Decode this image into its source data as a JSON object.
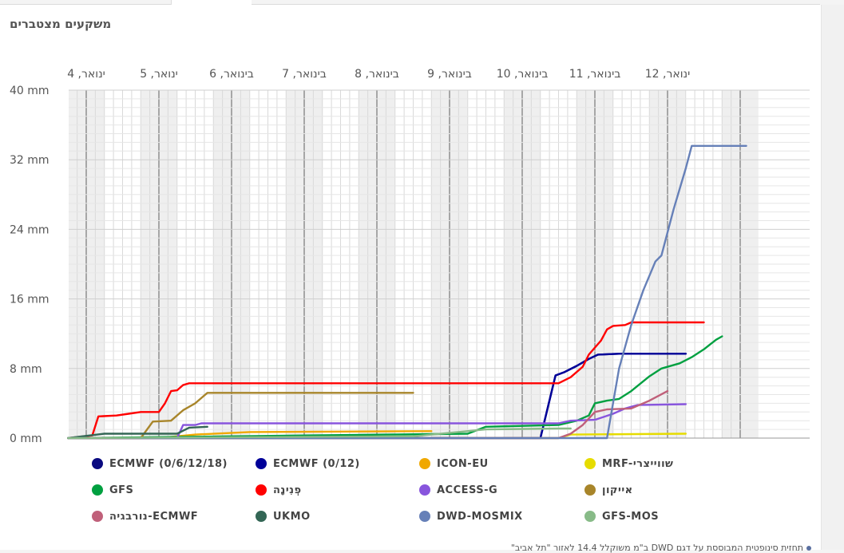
{
  "panel": {
    "title": "משקעים מצטברים"
  },
  "footnote": {
    "text": "תחזית סינופטית המבוססת על דגם DWD ב\"מ משוקלל 14.4 לאזור \"תל אביב\""
  },
  "colors": {
    "grid": "#d9d9d9",
    "band": "#efefef",
    "midnight": "#777777",
    "axis": "#999999"
  },
  "chart_data": {
    "type": "line",
    "title": "משקעים מצטברים",
    "xlabel": "",
    "ylabel": "",
    "x_unit": "hours since first midnight label (4 ינואר)",
    "xlim": [
      -6,
      205
    ],
    "ylim": [
      0,
      40
    ],
    "y_ticks": [
      {
        "value": 0,
        "label": "0 mm"
      },
      {
        "value": 8,
        "label": "8 mm"
      },
      {
        "value": 16,
        "label": "16 mm"
      },
      {
        "value": 24,
        "label": "24 mm"
      },
      {
        "value": 32,
        "label": "32 mm"
      },
      {
        "value": 40,
        "label": "40 mm"
      }
    ],
    "x_day_labels": [
      {
        "x": 12,
        "label": "4 ,ינואר"
      },
      {
        "x": 36,
        "label": "5 ,ינואר"
      },
      {
        "x": 60,
        "label": "6 ,בינואר"
      },
      {
        "x": 84,
        "label": "7 ,בינואר"
      },
      {
        "x": 108,
        "label": "8 ,בינואר"
      },
      {
        "x": 132,
        "label": "9 ,בינואר"
      },
      {
        "x": 156,
        "label": "10 ,בינואר"
      },
      {
        "x": 180,
        "label": "11 ,בינואר"
      },
      {
        "x": 204,
        "label": "12 ,ינואר"
      }
    ],
    "grid": true,
    "legend_position": "bottom",
    "series": [
      {
        "name": "ECMWF (0/6/12/18)",
        "color": "#0a0a80",
        "points": [
          [
            -6,
            0
          ],
          [
            150,
            0
          ],
          [
            155,
            7.2
          ],
          [
            158,
            7.6
          ],
          [
            162,
            8.3
          ],
          [
            166,
            9.1
          ],
          [
            169,
            9.6
          ],
          [
            176,
            9.7
          ],
          [
            198,
            9.7
          ]
        ]
      },
      {
        "name": "ECMWF (0/12)",
        "color": "#000099",
        "points": [
          [
            -6,
            0
          ],
          [
            150,
            0
          ],
          [
            155,
            7.2
          ],
          [
            158,
            7.6
          ],
          [
            162,
            8.3
          ],
          [
            166,
            9.1
          ],
          [
            169,
            9.6
          ],
          [
            176,
            9.7
          ],
          [
            198,
            9.7
          ]
        ]
      },
      {
        "name": "ICON-EU",
        "color": "#f0a800",
        "points": [
          [
            -6,
            0
          ],
          [
            24,
            0
          ],
          [
            36,
            0.4
          ],
          [
            54,
            0.7
          ],
          [
            114,
            0.8
          ]
        ]
      },
      {
        "name": "MRF-שווייצרי",
        "color": "#e6dc00",
        "points": [
          [
            -6,
            0
          ],
          [
            156,
            0
          ],
          [
            160,
            0.4
          ],
          [
            198,
            0.5
          ]
        ]
      },
      {
        "name": "GFS",
        "color": "#00a040",
        "points": [
          [
            -6,
            0
          ],
          [
            126,
            0.5
          ],
          [
            132,
            1.3
          ],
          [
            156,
            1.5
          ],
          [
            162,
            2.0
          ],
          [
            166,
            2.6
          ],
          [
            168,
            4.0
          ],
          [
            172,
            4.3
          ],
          [
            176,
            4.5
          ],
          [
            180,
            5.4
          ],
          [
            186,
            7.1
          ],
          [
            190,
            8.0
          ],
          [
            196,
            8.6
          ],
          [
            200,
            9.3
          ],
          [
            204,
            10.2
          ],
          [
            208,
            11.3
          ],
          [
            210,
            11.7
          ]
        ]
      },
      {
        "name": "פְנִינָה",
        "color": "#ff0000",
        "points": [
          [
            -6,
            0
          ],
          [
            2,
            0.3
          ],
          [
            4,
            2.5
          ],
          [
            10,
            2.6
          ],
          [
            14,
            2.8
          ],
          [
            18,
            3.0
          ],
          [
            24,
            3.0
          ],
          [
            26,
            4.0
          ],
          [
            28,
            5.4
          ],
          [
            30,
            5.5
          ],
          [
            32,
            6.1
          ],
          [
            34,
            6.3
          ],
          [
            156,
            6.3
          ],
          [
            160,
            7.0
          ],
          [
            164,
            8.2
          ],
          [
            166,
            9.6
          ],
          [
            170,
            11.2
          ],
          [
            172,
            12.5
          ],
          [
            174,
            12.9
          ],
          [
            178,
            13.0
          ],
          [
            180,
            13.3
          ],
          [
            204,
            13.3
          ]
        ]
      },
      {
        "name": "ACCESS-G",
        "color": "#8855dd",
        "points": [
          [
            -6,
            0
          ],
          [
            30,
            0
          ],
          [
            32,
            1.5
          ],
          [
            36,
            1.5
          ],
          [
            38,
            1.7
          ],
          [
            156,
            1.7
          ],
          [
            160,
            2.0
          ],
          [
            168,
            2.1
          ],
          [
            174,
            2.8
          ],
          [
            178,
            3.4
          ],
          [
            182,
            3.8
          ],
          [
            198,
            3.9
          ]
        ]
      },
      {
        "name": "אייקון",
        "color": "#a8852a",
        "points": [
          [
            -6,
            0
          ],
          [
            18,
            0
          ],
          [
            22,
            1.9
          ],
          [
            28,
            2.0
          ],
          [
            32,
            3.2
          ],
          [
            36,
            4.0
          ],
          [
            40,
            5.2
          ],
          [
            108,
            5.2
          ]
        ]
      },
      {
        "name": "נורבגיה-ECMWF",
        "color": "#c0607a",
        "points": [
          [
            -6,
            0
          ],
          [
            156,
            0
          ],
          [
            160,
            0.5
          ],
          [
            164,
            1.5
          ],
          [
            168,
            3.0
          ],
          [
            172,
            3.3
          ],
          [
            180,
            3.4
          ],
          [
            186,
            4.3
          ],
          [
            192,
            5.4
          ]
        ]
      },
      {
        "name": "UKMO",
        "color": "#336655",
        "points": [
          [
            -6,
            0
          ],
          [
            6,
            0.5
          ],
          [
            30,
            0.5
          ],
          [
            34,
            1.2
          ],
          [
            40,
            1.3
          ]
        ]
      },
      {
        "name": "DWD-MOSMIX",
        "color": "#6680b8",
        "points": [
          [
            -6,
            0
          ],
          [
            144,
            0
          ],
          [
            172,
            0
          ],
          [
            176,
            8.0
          ],
          [
            180,
            13.0
          ],
          [
            184,
            17.0
          ],
          [
            188,
            20.3
          ],
          [
            190,
            21.0
          ],
          [
            194,
            26.3
          ],
          [
            198,
            31.0
          ],
          [
            200,
            33.6
          ],
          [
            218,
            33.6
          ]
        ]
      },
      {
        "name": "GFS-MOS",
        "color": "#88bb88",
        "points": [
          [
            -6,
            0
          ],
          [
            108,
            0.2
          ],
          [
            132,
            1.0
          ],
          [
            156,
            1.1
          ],
          [
            160,
            1.1
          ]
        ]
      }
    ]
  }
}
